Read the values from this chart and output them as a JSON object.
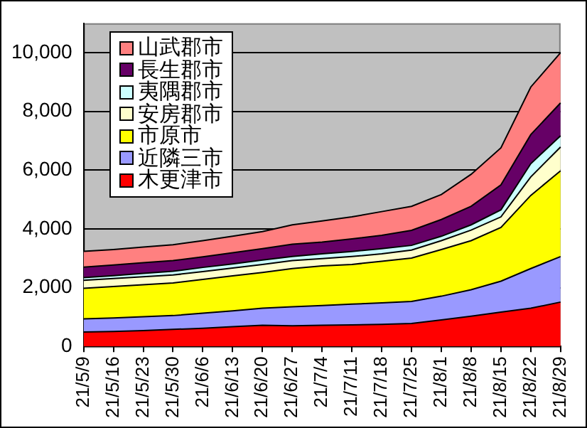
{
  "chart_data": {
    "type": "area",
    "stacked": true,
    "categories": [
      "21/5/9",
      "21/5/16",
      "21/5/23",
      "21/5/30",
      "21/6/6",
      "21/6/13",
      "21/6/20",
      "21/6/27",
      "21/7/4",
      "21/7/11",
      "21/7/18",
      "21/7/25",
      "21/8/1",
      "21/8/8",
      "21/8/15",
      "21/8/22",
      "21/8/29"
    ],
    "series": [
      {
        "name": "木更津市",
        "color": "#ff0000",
        "values": [
          490,
          510,
          540,
          580,
          620,
          670,
          720,
          700,
          720,
          730,
          750,
          780,
          900,
          1030,
          1170,
          1300,
          1510
        ]
      },
      {
        "name": "近隣三市",
        "color": "#9999ff",
        "values": [
          450,
          460,
          470,
          470,
          510,
          540,
          580,
          650,
          670,
          710,
          730,
          750,
          810,
          900,
          1050,
          1350,
          1550
        ]
      },
      {
        "name": "市原市",
        "color": "#ffff00",
        "values": [
          1040,
          1070,
          1090,
          1110,
          1150,
          1190,
          1220,
          1300,
          1350,
          1350,
          1420,
          1480,
          1590,
          1670,
          1830,
          2490,
          2920
        ]
      },
      {
        "name": "安房郡市",
        "color": "#ffffcc",
        "values": [
          270,
          270,
          270,
          270,
          270,
          270,
          270,
          270,
          250,
          270,
          250,
          270,
          300,
          360,
          360,
          630,
          810
        ]
      },
      {
        "name": "夷隅郡市",
        "color": "#ccffff",
        "values": [
          90,
          100,
          120,
          130,
          140,
          140,
          150,
          140,
          160,
          170,
          180,
          160,
          150,
          180,
          240,
          450,
          380
        ]
      },
      {
        "name": "長生郡市",
        "color": "#660066",
        "values": [
          360,
          360,
          360,
          360,
          360,
          380,
          390,
          420,
          400,
          430,
          450,
          510,
          570,
          630,
          850,
          990,
          1120
        ]
      },
      {
        "name": "山武郡市",
        "color": "#ff8080",
        "values": [
          540,
          530,
          530,
          540,
          550,
          560,
          580,
          660,
          720,
          750,
          810,
          820,
          850,
          1090,
          1260,
          1620,
          1710
        ]
      }
    ],
    "ylim": [
      0,
      11000
    ],
    "yticks": [
      0,
      {
        "value": 2000,
        "label": "2,000"
      },
      {
        "value": 4000,
        "label": "4,000"
      },
      {
        "value": 6000,
        "label": "6,000"
      },
      {
        "value": 8000,
        "label": "8,000"
      },
      {
        "value": 10000,
        "label": "10,000"
      }
    ],
    "grid": "y",
    "legend": "top left",
    "marker": "none"
  }
}
